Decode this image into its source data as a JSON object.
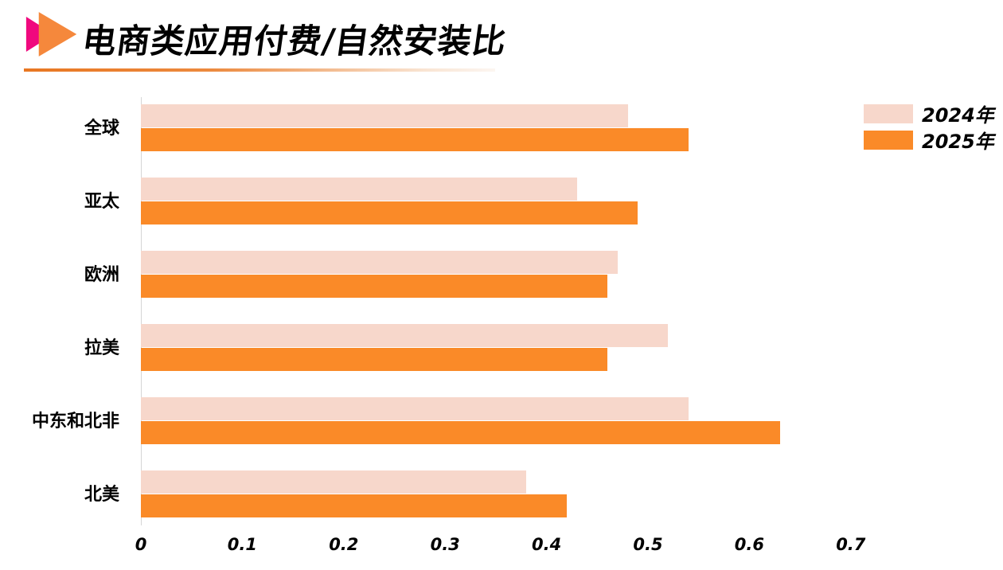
{
  "header": {
    "title": "电商类应用付费/自然安装比"
  },
  "colors": {
    "logo_pink": "#F0087E",
    "logo_orange": "#F5883C",
    "divider_orange": "#E87722",
    "axis_line": "#D6D6D6",
    "bar_2024": "#F7D7CB",
    "bar_2025": "#FA8A28",
    "text": "#000000"
  },
  "chart_data": {
    "type": "bar",
    "orientation": "horizontal",
    "title": "电商类应用付费/自然安装比",
    "categories": [
      "全球",
      "亚太",
      "欧洲",
      "拉美",
      "中东和北非",
      "北美"
    ],
    "series": [
      {
        "name": "2024年",
        "color": "#F7D7CB",
        "values": [
          0.48,
          0.43,
          0.47,
          0.52,
          0.54,
          0.38
        ]
      },
      {
        "name": "2025年",
        "color": "#FA8A28",
        "values": [
          0.54,
          0.49,
          0.46,
          0.46,
          0.63,
          0.42
        ]
      }
    ],
    "x_ticks": [
      0,
      0.1,
      0.2,
      0.3,
      0.4,
      0.5,
      0.6,
      0.7
    ],
    "xlim": [
      0,
      0.78
    ],
    "xlabel": "",
    "ylabel": "",
    "grid": false,
    "legend_position": "top-right"
  }
}
